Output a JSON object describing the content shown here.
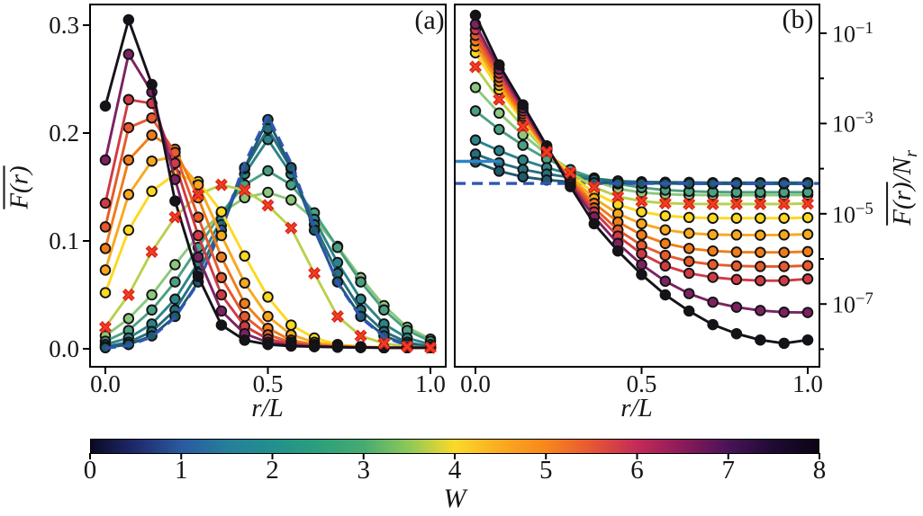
{
  "panel_a": {
    "label": "(a)",
    "x_axis": {
      "label": "r/L",
      "ticks": [
        "0.0",
        "0.5",
        "1.0"
      ],
      "tick_values": [
        0,
        0.5,
        1
      ]
    },
    "y_axis": {
      "label": "F(r)",
      "overline": true,
      "ticks": [
        "0.0",
        "0.1",
        "0.2",
        "0.3"
      ],
      "tick_values": [
        0,
        0.1,
        0.2,
        0.3
      ]
    }
  },
  "panel_b": {
    "label": "(b)",
    "x_axis": {
      "label": "r/L",
      "ticks": [
        "0.0",
        "0.5",
        "1.0"
      ],
      "tick_values": [
        0,
        0.5,
        1
      ]
    },
    "y_axis": {
      "label_numerator": "F(r)",
      "label_slash": "/",
      "label_denominator": "N",
      "label_denominator_sub": "r",
      "tick_base": "10",
      "tick_exponents": [
        "−1",
        "−3",
        "−5",
        "−7"
      ],
      "tick_exp_values": [
        -1,
        -3,
        -5,
        -7
      ],
      "minor_exp_values": [
        -2,
        -4,
        -6,
        -8
      ]
    }
  },
  "colorbar": {
    "label": "W",
    "ticks": [
      "0",
      "1",
      "2",
      "3",
      "4",
      "5",
      "6",
      "7",
      "8"
    ],
    "tick_values": [
      0,
      1,
      2,
      3,
      4,
      5,
      6,
      7,
      8
    ],
    "gradient_stops": [
      [
        0.0,
        "#0a0a24"
      ],
      [
        0.06,
        "#1e2a6b"
      ],
      [
        0.125,
        "#2a5aa0"
      ],
      [
        0.1875,
        "#257f9c"
      ],
      [
        0.25,
        "#22908c"
      ],
      [
        0.3125,
        "#2ba07c"
      ],
      [
        0.375,
        "#47ab72"
      ],
      [
        0.4375,
        "#8ec957"
      ],
      [
        0.5,
        "#fbd92a"
      ],
      [
        0.5625,
        "#fbab21"
      ],
      [
        0.625,
        "#f8871c"
      ],
      [
        0.6875,
        "#e65734"
      ],
      [
        0.75,
        "#c42b59"
      ],
      [
        0.8125,
        "#8c1a59"
      ],
      [
        0.875,
        "#4a1358"
      ],
      [
        0.9375,
        "#1f0a33"
      ],
      [
        1.0,
        "#0c0414"
      ]
    ]
  },
  "chart_data": {
    "type": "line",
    "x": [
      0,
      0.0714,
      0.1429,
      0.2143,
      0.2857,
      0.3571,
      0.4286,
      0.5,
      0.5714,
      0.6429,
      0.7143,
      0.7857,
      0.8571,
      0.9286,
      1.0
    ],
    "panels": [
      {
        "id": "a",
        "title": "(a)",
        "yscale": "linear",
        "xlabel": "r/L",
        "ylabel": "F(r) (overline)",
        "xlim": [
          -0.047,
          1.053
        ],
        "ylim": [
          -0.017,
          0.319
        ]
      },
      {
        "id": "b",
        "title": "(b)",
        "yscale": "log",
        "xlabel": "r/L",
        "ylabel": "F(r)/N_r (overline F)",
        "xlim": [
          -0.062,
          1.035
        ],
        "ylim": [
          3e-09,
          0.44
        ]
      }
    ],
    "series": [
      {
        "name": "W=8",
        "W": 8,
        "marker": "circle",
        "color": "#16121a",
        "z": 13,
        "a": [
          0.225,
          0.305,
          0.245,
          0.137,
          0.067,
          0.022,
          0.008,
          0.004,
          0.0025,
          0.002,
          0.0015,
          0.0012,
          0.001,
          0.001,
          0.001
        ],
        "b": [
          0.25,
          0.02,
          0.0026,
          0.00032,
          4e-05,
          6e-06,
          1.5e-06,
          4.5e-07,
          1.6e-07,
          7e-08,
          3.5e-08,
          2.2e-08,
          1.6e-08,
          1.35e-08,
          1.6e-08
        ]
      },
      {
        "name": "W=7",
        "W": 7,
        "marker": "circle",
        "color": "#7c2262",
        "z": 12,
        "a": [
          0.175,
          0.273,
          0.238,
          0.157,
          0.085,
          0.035,
          0.014,
          0.006,
          0.003,
          0.002,
          0.0015,
          0.0012,
          0.001,
          0.001,
          0.001
        ],
        "b": [
          0.16,
          0.016,
          0.0022,
          0.0003,
          4.5e-05,
          8.5e-06,
          2.2e-06,
          7.5e-07,
          3.2e-07,
          1.7e-07,
          1.1e-07,
          8.5e-08,
          7.2e-08,
          6.6e-08,
          6.5e-08
        ]
      },
      {
        "name": "W=6",
        "W": 6,
        "marker": "circle",
        "color": "#cf3b45",
        "z": 11,
        "a": [
          0.135,
          0.231,
          0.2275,
          0.172,
          0.105,
          0.05,
          0.021,
          0.009,
          0.0045,
          0.0025,
          0.002,
          0.0015,
          0.001,
          0.001,
          0.001
        ],
        "b": [
          0.12,
          0.013,
          0.0019,
          0.00029,
          5e-05,
          1.1e-05,
          3.2e-06,
          1.3e-06,
          7e-07,
          4.8e-07,
          3.9e-07,
          3.5e-07,
          3.3e-07,
          3.3e-07,
          3.6e-07
        ]
      },
      {
        "name": "W=5.5",
        "W": 5.5,
        "marker": "circle",
        "color": "#e65a2c",
        "z": 10,
        "a": [
          0.113,
          0.205,
          0.214,
          0.182,
          0.122,
          0.066,
          0.03,
          0.013,
          0.006,
          0.003,
          0.002,
          0.0015,
          0.001,
          0.001,
          0.001
        ],
        "b": [
          0.09,
          0.0105,
          0.00165,
          0.000275,
          5.4e-05,
          1.35e-05,
          4.4e-06,
          2e-06,
          1.2e-06,
          8.8e-07,
          7.5e-07,
          7e-07,
          6.8e-07,
          6.8e-07,
          7.1e-07
        ]
      },
      {
        "name": "W=5",
        "W": 5,
        "marker": "circle",
        "color": "#f07d18",
        "z": 9,
        "a": [
          0.093,
          0.175,
          0.198,
          0.185,
          0.14,
          0.085,
          0.042,
          0.019,
          0.008,
          0.004,
          0.002,
          0.0015,
          0.001,
          0.001,
          0.001
        ],
        "b": [
          0.068,
          0.0086,
          0.00145,
          0.00026,
          5.8e-05,
          1.7e-05,
          6.6e-06,
          3.4e-06,
          2.2e-06,
          1.7e-06,
          1.5e-06,
          1.42e-06,
          1.4e-06,
          1.4e-06,
          1.45e-06
        ]
      },
      {
        "name": "W=4.5",
        "W": 4.5,
        "marker": "circle",
        "color": "#f9a81e",
        "z": 8,
        "a": [
          0.073,
          0.143,
          0.174,
          0.178,
          0.152,
          0.105,
          0.061,
          0.03,
          0.013,
          0.006,
          0.003,
          0.002,
          0.0012,
          0.001,
          0.001
        ],
        "b": [
          0.051,
          0.007,
          0.0013,
          0.000255,
          6.4e-05,
          2.2e-05,
          1e-05,
          6e-06,
          4.4e-06,
          3.7e-06,
          3.45e-06,
          3.4e-06,
          3.35e-06,
          3.4e-06,
          3.5e-06
        ]
      },
      {
        "name": "W=4",
        "W": 4,
        "marker": "circle",
        "color": "#fed81f",
        "z": 7,
        "a": [
          0.052,
          0.11,
          0.146,
          0.162,
          0.155,
          0.127,
          0.086,
          0.048,
          0.022,
          0.01,
          0.004,
          0.002,
          0.0012,
          0.001,
          0.001
        ],
        "b": [
          0.037,
          0.0056,
          0.00115,
          0.00025,
          7.2e-05,
          2.9e-05,
          1.6e-05,
          1.1e-05,
          9e-06,
          8.3e-06,
          8e-06,
          8e-06,
          8e-06,
          8e-06,
          8.2e-06
        ]
      },
      {
        "name": "x-marker-series",
        "W": 3.5,
        "marker": "x",
        "color": "#b8d14b",
        "marker_edge": "#d81f15",
        "marker_face": "#ef4123",
        "z": 6.5,
        "a": [
          0.02,
          0.05,
          0.09,
          0.122,
          0.143,
          0.152,
          0.147,
          0.133,
          0.112,
          0.07,
          0.03,
          0.012,
          0.005,
          0.002,
          0.001
        ],
        "b": [
          0.018,
          0.0034,
          0.00085,
          0.000235,
          8.2e-05,
          3.9e-05,
          2.4e-05,
          1.9e-05,
          1.72e-05,
          1.66e-05,
          1.65e-05,
          1.65e-05,
          1.65e-05,
          1.65e-05,
          1.68e-05
        ]
      },
      {
        "name": "W=3",
        "W": 3,
        "marker": "circle",
        "color": "#8cc87c",
        "z": 1,
        "a": [
          0.012,
          0.028,
          0.05,
          0.078,
          0.105,
          0.126,
          0.14,
          0.145,
          0.138,
          0.12,
          0.095,
          0.066,
          0.04,
          0.02,
          0.009
        ],
        "b": [
          0.0063,
          0.0017,
          0.00056,
          0.00021,
          9.5e-05,
          5.3e-05,
          3.6e-05,
          2.95e-05,
          2.7e-05,
          2.62e-05,
          2.6e-05,
          2.6e-05,
          2.6e-05,
          2.6e-05,
          2.62e-05
        ]
      },
      {
        "name": "W=2.5",
        "W": 2.5,
        "marker": "circle",
        "color": "#4ba081",
        "z": 2,
        "a": [
          0.007,
          0.017,
          0.036,
          0.062,
          0.094,
          0.126,
          0.152,
          0.165,
          0.152,
          0.126,
          0.094,
          0.062,
          0.036,
          0.017,
          0.007
        ],
        "b": [
          0.0019,
          0.00074,
          0.00033,
          0.000165,
          9.4e-05,
          6.2e-05,
          4.6e-05,
          3.8e-05,
          3.35e-05,
          3.15e-05,
          3.05e-05,
          3e-05,
          3e-05,
          3e-05,
          3e-05
        ]
      },
      {
        "name": "W=2",
        "W": 2,
        "marker": "circle",
        "color": "#2b8489",
        "z": 3,
        "a": [
          0.004,
          0.01,
          0.023,
          0.046,
          0.08,
          0.12,
          0.162,
          0.194,
          0.162,
          0.12,
          0.08,
          0.046,
          0.023,
          0.01,
          0.004
        ],
        "b": [
          0.00043,
          0.00025,
          0.000155,
          0.000105,
          7.6e-05,
          6.1e-05,
          5.3e-05,
          4.9e-05,
          4.7e-05,
          4.62e-05,
          4.6e-05,
          4.6e-05,
          4.6e-05,
          4.6e-05,
          4.6e-05
        ]
      },
      {
        "name": "W=1.5",
        "W": 1.5,
        "marker": "circle",
        "color": "#266e7e",
        "z": 4,
        "a": [
          0.002,
          0.006,
          0.016,
          0.036,
          0.07,
          0.115,
          0.167,
          0.204,
          0.167,
          0.115,
          0.07,
          0.036,
          0.016,
          0.006,
          0.002
        ],
        "b": [
          0.00021,
          0.000135,
          9.6e-05,
          7.6e-05,
          6.4e-05,
          5.7e-05,
          5.3e-05,
          5.1e-05,
          5e-05,
          4.95e-05,
          4.9e-05,
          4.9e-05,
          4.9e-05,
          4.9e-05,
          4.9e-05
        ]
      },
      {
        "name": "W=1",
        "W": 1,
        "marker": "circle",
        "color": "#1f5a6e",
        "z": 5,
        "a": [
          0.001,
          0.004,
          0.012,
          0.03,
          0.062,
          0.11,
          0.168,
          0.2125,
          0.168,
          0.11,
          0.062,
          0.03,
          0.012,
          0.004,
          0.001
        ],
        "b": [
          0.00014,
          8.8e-05,
          6.6e-05,
          5.6e-05,
          5.1e-05,
          4.9e-05,
          4.8e-05,
          4.75e-05,
          4.7e-05,
          4.7e-05,
          4.7e-05,
          4.7e-05,
          4.7e-05,
          4.7e-05,
          4.7e-05
        ]
      }
    ],
    "references": [
      {
        "name": "ergodic-dashed-curve-a",
        "panel": "a",
        "style": "dashed",
        "color": "#2e56b2",
        "z": 6,
        "values": [
          0.0005,
          0.003,
          0.011,
          0.029,
          0.061,
          0.112,
          0.172,
          0.216,
          0.172,
          0.112,
          0.061,
          0.029,
          0.011,
          0.003,
          0.0005
        ]
      },
      {
        "name": "ergodic-dashed-hline-b",
        "panel": "b",
        "style": "dashed",
        "color": "#2e56b2",
        "z": 6,
        "y": 4.7e-05,
        "x_from": -0.062,
        "x_to": 1.035
      },
      {
        "name": "reference-solid-segment-b",
        "panel": "b",
        "style": "solid",
        "color": "#2d85c4",
        "z": 5.5,
        "y": 0.000145,
        "x_from": -0.062,
        "x_to": 0.078
      }
    ]
  }
}
